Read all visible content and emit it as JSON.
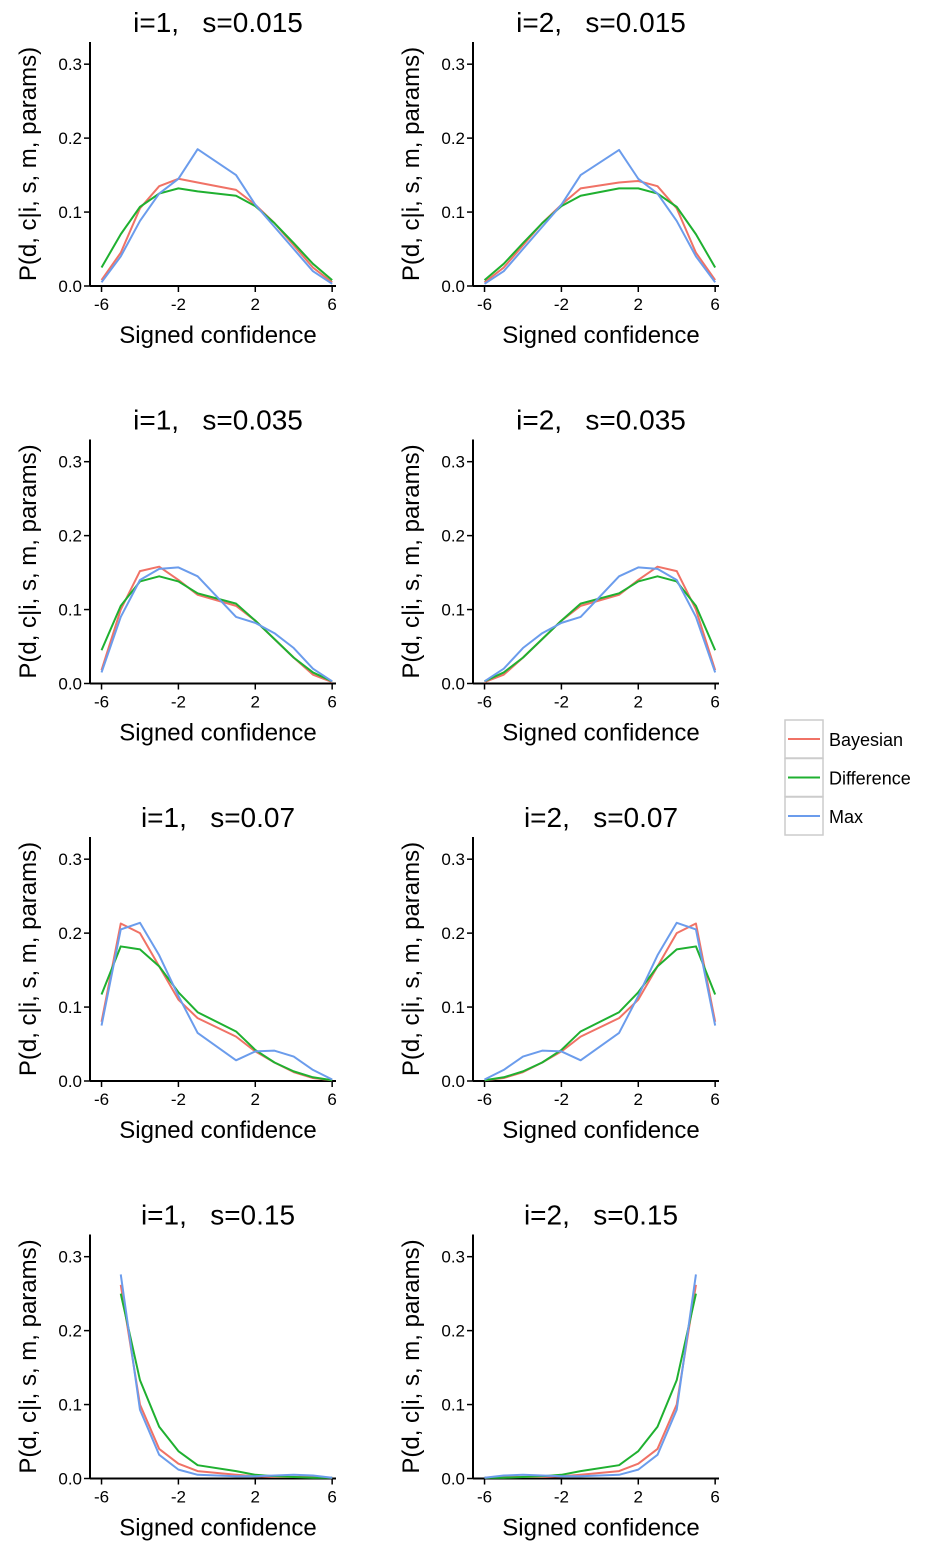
{
  "legend": {
    "series": [
      {
        "name": "Bayesian",
        "color": "#f07266"
      },
      {
        "name": "Difference",
        "color": "#1fb030"
      },
      {
        "name": "Max",
        "color": "#6b9cec"
      }
    ]
  },
  "chart_data": [
    {
      "type": "line",
      "title": "i=1,   s=0.015",
      "xlabel": "Signed confidence",
      "ylabel": "P(d, c|i, s, m, params)",
      "x": [
        -6,
        -5,
        -4,
        -3,
        -2,
        -1,
        1,
        2,
        3,
        4,
        5,
        6
      ],
      "series": [
        {
          "values": [
            0.008,
            0.045,
            0.105,
            0.135,
            0.145,
            0.14,
            0.13,
            0.11,
            0.085,
            0.055,
            0.025,
            0.005
          ]
        },
        {
          "values": [
            0.025,
            0.07,
            0.107,
            0.125,
            0.132,
            0.128,
            0.122,
            0.108,
            0.085,
            0.058,
            0.03,
            0.008
          ]
        },
        {
          "values": [
            0.005,
            0.04,
            0.088,
            0.125,
            0.145,
            0.185,
            0.15,
            0.11,
            0.08,
            0.05,
            0.02,
            0.003
          ]
        }
      ],
      "xlim": [
        -6.6,
        6.2
      ],
      "ylim": [
        0,
        0.33
      ],
      "xticks": [
        -6,
        -2,
        2,
        6
      ],
      "yticks": [
        {
          "value": 0,
          "label": "0.0"
        },
        0.1,
        0.2,
        0.3
      ]
    },
    {
      "type": "line",
      "title": "i=2,   s=0.015",
      "xlabel": "Signed confidence",
      "ylabel": "P(d, c|i, s, m, params)",
      "x": [
        -6,
        -5,
        -4,
        -3,
        -2,
        -1,
        1,
        2,
        3,
        4,
        5,
        6
      ],
      "series": [
        {
          "values": [
            0.005,
            0.025,
            0.055,
            0.085,
            0.11,
            0.132,
            0.14,
            0.142,
            0.135,
            0.105,
            0.045,
            0.008
          ]
        },
        {
          "values": [
            0.008,
            0.03,
            0.058,
            0.085,
            0.108,
            0.122,
            0.132,
            0.132,
            0.125,
            0.107,
            0.07,
            0.025
          ]
        },
        {
          "values": [
            0.003,
            0.02,
            0.05,
            0.08,
            0.11,
            0.15,
            0.184,
            0.145,
            0.125,
            0.088,
            0.04,
            0.005
          ]
        }
      ],
      "xlim": [
        -6.6,
        6.2
      ],
      "ylim": [
        0,
        0.33
      ],
      "xticks": [
        -6,
        -2,
        2,
        6
      ],
      "yticks": [
        {
          "value": 0,
          "label": "0.0"
        },
        0.1,
        0.2,
        0.3
      ]
    },
    {
      "type": "line",
      "title": "i=1,   s=0.035",
      "xlabel": "Signed confidence",
      "ylabel": "P(d, c|i, s, m, params)",
      "x": [
        -6,
        -5,
        -4,
        -3,
        -2,
        -1,
        1,
        2,
        3,
        4,
        5,
        6
      ],
      "series": [
        {
          "values": [
            0.018,
            0.1,
            0.152,
            0.158,
            0.14,
            0.12,
            0.105,
            0.085,
            0.06,
            0.035,
            0.012,
            0.002
          ]
        },
        {
          "values": [
            0.045,
            0.105,
            0.138,
            0.145,
            0.138,
            0.122,
            0.108,
            0.085,
            0.06,
            0.035,
            0.015,
            0.003
          ]
        },
        {
          "values": [
            0.015,
            0.09,
            0.14,
            0.155,
            0.157,
            0.145,
            0.09,
            0.082,
            0.068,
            0.048,
            0.02,
            0.003
          ]
        }
      ],
      "xlim": [
        -6.6,
        6.2
      ],
      "ylim": [
        0,
        0.33
      ],
      "xticks": [
        -6,
        -2,
        2,
        6
      ],
      "yticks": [
        {
          "value": 0,
          "label": "0.0"
        },
        0.1,
        0.2,
        0.3
      ]
    },
    {
      "type": "line",
      "title": "i=2,   s=0.035",
      "xlabel": "Signed confidence",
      "ylabel": "P(d, c|i, s, m, params)",
      "x": [
        -6,
        -5,
        -4,
        -3,
        -2,
        -1,
        1,
        2,
        3,
        4,
        5,
        6
      ],
      "series": [
        {
          "values": [
            0.002,
            0.012,
            0.035,
            0.06,
            0.085,
            0.105,
            0.12,
            0.14,
            0.158,
            0.152,
            0.1,
            0.018
          ]
        },
        {
          "values": [
            0.003,
            0.015,
            0.035,
            0.06,
            0.085,
            0.108,
            0.122,
            0.138,
            0.145,
            0.138,
            0.105,
            0.045
          ]
        },
        {
          "values": [
            0.003,
            0.02,
            0.048,
            0.068,
            0.082,
            0.09,
            0.145,
            0.157,
            0.155,
            0.14,
            0.09,
            0.015
          ]
        }
      ],
      "xlim": [
        -6.6,
        6.2
      ],
      "ylim": [
        0,
        0.33
      ],
      "xticks": [
        -6,
        -2,
        2,
        6
      ],
      "yticks": [
        {
          "value": 0,
          "label": "0.0"
        },
        0.1,
        0.2,
        0.3
      ]
    },
    {
      "type": "line",
      "title": "i=1,   s=0.07",
      "xlabel": "Signed confidence",
      "ylabel": "P(d, c|i, s, m, params)",
      "x": [
        -6,
        -5,
        -4,
        -3,
        -2,
        -1,
        1,
        2,
        3,
        4,
        5,
        6
      ],
      "series": [
        {
          "values": [
            0.08,
            0.213,
            0.2,
            0.155,
            0.11,
            0.085,
            0.06,
            0.04,
            0.025,
            0.012,
            0.004,
            0.001
          ]
        },
        {
          "values": [
            0.117,
            0.182,
            0.178,
            0.155,
            0.12,
            0.093,
            0.067,
            0.042,
            0.025,
            0.013,
            0.005,
            0.001
          ]
        },
        {
          "values": [
            0.075,
            0.205,
            0.214,
            0.17,
            0.115,
            0.065,
            0.028,
            0.04,
            0.041,
            0.033,
            0.015,
            0.002
          ]
        }
      ],
      "xlim": [
        -6.6,
        6.2
      ],
      "ylim": [
        0,
        0.33
      ],
      "xticks": [
        -6,
        -2,
        2,
        6
      ],
      "yticks": [
        {
          "value": 0,
          "label": "0.0"
        },
        0.1,
        0.2,
        0.3
      ]
    },
    {
      "type": "line",
      "title": "i=2,   s=0.07",
      "xlabel": "Signed confidence",
      "ylabel": "P(d, c|i, s, m, params)",
      "x": [
        -6,
        -5,
        -4,
        -3,
        -2,
        -1,
        1,
        2,
        3,
        4,
        5,
        6
      ],
      "series": [
        {
          "values": [
            0.001,
            0.004,
            0.012,
            0.025,
            0.04,
            0.06,
            0.085,
            0.11,
            0.155,
            0.2,
            0.213,
            0.08
          ]
        },
        {
          "values": [
            0.001,
            0.005,
            0.013,
            0.025,
            0.042,
            0.067,
            0.093,
            0.12,
            0.155,
            0.178,
            0.182,
            0.117
          ]
        },
        {
          "values": [
            0.002,
            0.015,
            0.033,
            0.041,
            0.04,
            0.028,
            0.065,
            0.115,
            0.17,
            0.214,
            0.205,
            0.075
          ]
        }
      ],
      "xlim": [
        -6.6,
        6.2
      ],
      "ylim": [
        0,
        0.33
      ],
      "xticks": [
        -6,
        -2,
        2,
        6
      ],
      "yticks": [
        {
          "value": 0,
          "label": "0.0"
        },
        0.1,
        0.2,
        0.3
      ]
    },
    {
      "type": "line",
      "title": "i=1,   s=0.15",
      "xlabel": "Signed confidence",
      "ylabel": "P(d, c|i, s, m, params)",
      "x": [
        -6,
        -5,
        -4,
        -3,
        -2,
        -1,
        1,
        2,
        3,
        4,
        5,
        6
      ],
      "series": [
        {
          "values": [
            null,
            0.262,
            0.1,
            0.04,
            0.02,
            0.01,
            0.005,
            0.003,
            0.002,
            0.002,
            0.002,
            0.001
          ]
        },
        {
          "values": [
            null,
            0.25,
            0.133,
            0.07,
            0.037,
            0.018,
            0.01,
            0.005,
            0.003,
            0.002,
            0.001,
            0.001
          ]
        },
        {
          "values": [
            null,
            0.276,
            0.093,
            0.032,
            0.012,
            0.005,
            0.003,
            0.003,
            0.004,
            0.005,
            0.004,
            0.001
          ]
        }
      ],
      "xlim": [
        -6.6,
        6.2
      ],
      "ylim": [
        0,
        0.33
      ],
      "xticks": [
        -6,
        -2,
        2,
        6
      ],
      "yticks": [
        {
          "value": 0,
          "label": "0.0"
        },
        0.1,
        0.2,
        0.3
      ]
    },
    {
      "type": "line",
      "title": "i=2,   s=0.15",
      "xlabel": "Signed confidence",
      "ylabel": "P(d, c|i, s, m, params)",
      "x": [
        -6,
        -5,
        -4,
        -3,
        -2,
        -1,
        1,
        2,
        3,
        4,
        5,
        6
      ],
      "series": [
        {
          "values": [
            0.001,
            0.002,
            0.002,
            0.002,
            0.003,
            0.005,
            0.01,
            0.02,
            0.04,
            0.1,
            0.262,
            null
          ]
        },
        {
          "values": [
            0.001,
            0.001,
            0.002,
            0.003,
            0.005,
            0.01,
            0.018,
            0.037,
            0.07,
            0.133,
            0.25,
            null
          ]
        },
        {
          "values": [
            0.001,
            0.004,
            0.005,
            0.004,
            0.003,
            0.003,
            0.005,
            0.012,
            0.032,
            0.093,
            0.276,
            null
          ]
        }
      ],
      "xlim": [
        -6.6,
        6.2
      ],
      "ylim": [
        0,
        0.33
      ],
      "xticks": [
        -6,
        -2,
        2,
        6
      ],
      "yticks": [
        {
          "value": 0,
          "label": "0.0"
        },
        0.1,
        0.2,
        0.3
      ]
    }
  ]
}
